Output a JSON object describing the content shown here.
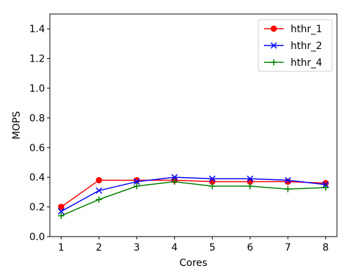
{
  "chart_data": {
    "type": "line",
    "title": "",
    "xlabel": "Cores",
    "ylabel": "MOPS",
    "x": [
      1,
      2,
      3,
      4,
      5,
      6,
      7,
      8
    ],
    "xlim": [
      0.7,
      8.3
    ],
    "ylim": [
      0.0,
      1.5
    ],
    "xticks": [
      1,
      2,
      3,
      4,
      5,
      6,
      7,
      8
    ],
    "yticks": [
      0.0,
      0.2,
      0.4,
      0.6,
      0.8,
      1.0,
      1.2,
      1.4
    ],
    "ytick_labels": [
      "0.0",
      "0.2",
      "0.4",
      "0.6",
      "0.8",
      "1.0",
      "1.2",
      "1.4"
    ],
    "grid": false,
    "legend_position": "top-right",
    "series": [
      {
        "name": "hthr_1",
        "color": "#ff0000",
        "marker": "circle",
        "values": [
          0.2,
          0.38,
          0.38,
          0.38,
          0.37,
          0.37,
          0.37,
          0.36
        ]
      },
      {
        "name": "hthr_2",
        "color": "#0000ff",
        "marker": "x",
        "values": [
          0.17,
          0.31,
          0.37,
          0.4,
          0.39,
          0.39,
          0.38,
          0.35
        ]
      },
      {
        "name": "hthr_4",
        "color": "#008000",
        "marker": "plus",
        "values": [
          0.14,
          0.25,
          0.34,
          0.37,
          0.34,
          0.34,
          0.32,
          0.33
        ]
      }
    ]
  }
}
